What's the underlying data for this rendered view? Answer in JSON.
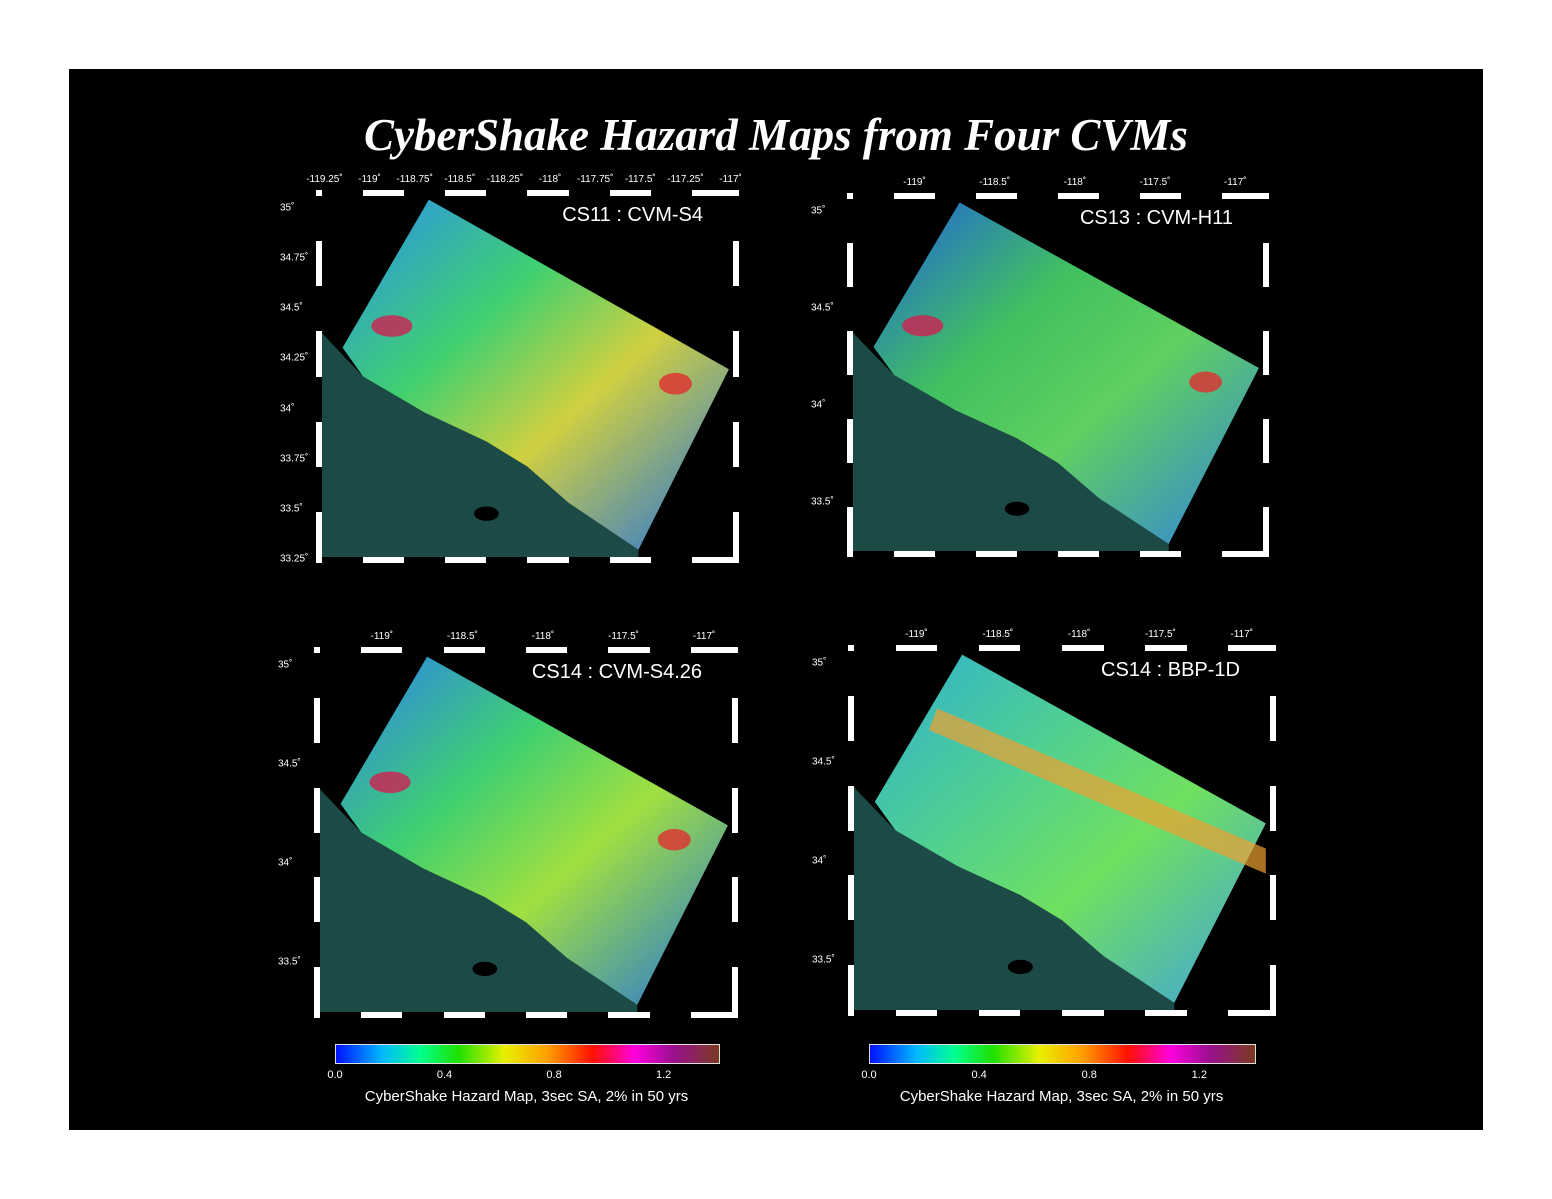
{
  "title": "CyberShake Hazard Maps from Four CVMs",
  "panels": [
    {
      "label": "CS11 : CVM-S4",
      "x_ticks": [
        "-119.25˚",
        "-119˚",
        "-118.75˚",
        "-118.5˚",
        "-118.25˚",
        "-118˚",
        "-117.75˚",
        "-117.5˚",
        "-117.25˚",
        "-117˚"
      ],
      "y_ticks": [
        "35˚",
        "34.75˚",
        "34.5˚",
        "34.25˚",
        "34˚",
        "33.75˚",
        "33.5˚",
        "33.25˚"
      ]
    },
    {
      "label": "CS13 : CVM-H11",
      "x_ticks": [
        "-119˚",
        "-118.5˚",
        "-118˚",
        "-117.5˚",
        "-117˚"
      ],
      "y_ticks": [
        "35˚",
        "34.5˚",
        "34˚",
        "33.5˚"
      ]
    },
    {
      "label": "CS14 : CVM-S4.26",
      "x_ticks": [
        "-119˚",
        "-118.5˚",
        "-118˚",
        "-117.5˚",
        "-117˚"
      ],
      "y_ticks": [
        "35˚",
        "34.5˚",
        "34˚",
        "33.5˚"
      ]
    },
    {
      "label": "CS14 : BBP-1D",
      "x_ticks": [
        "-119˚",
        "-118.5˚",
        "-118˚",
        "-117.5˚",
        "-117˚"
      ],
      "y_ticks": [
        "35˚",
        "34.5˚",
        "34˚",
        "33.5˚"
      ]
    }
  ],
  "colorbars": [
    {
      "ticks": [
        "0.0",
        "0.4",
        "0.8",
        "1.2"
      ],
      "label": "CyberShake Hazard Map, 3sec SA, 2% in 50 yrs"
    },
    {
      "ticks": [
        "0.0",
        "0.4",
        "0.8",
        "1.2"
      ],
      "label": "CyberShake Hazard Map, 3sec SA, 2% in 50 yrs"
    }
  ]
}
